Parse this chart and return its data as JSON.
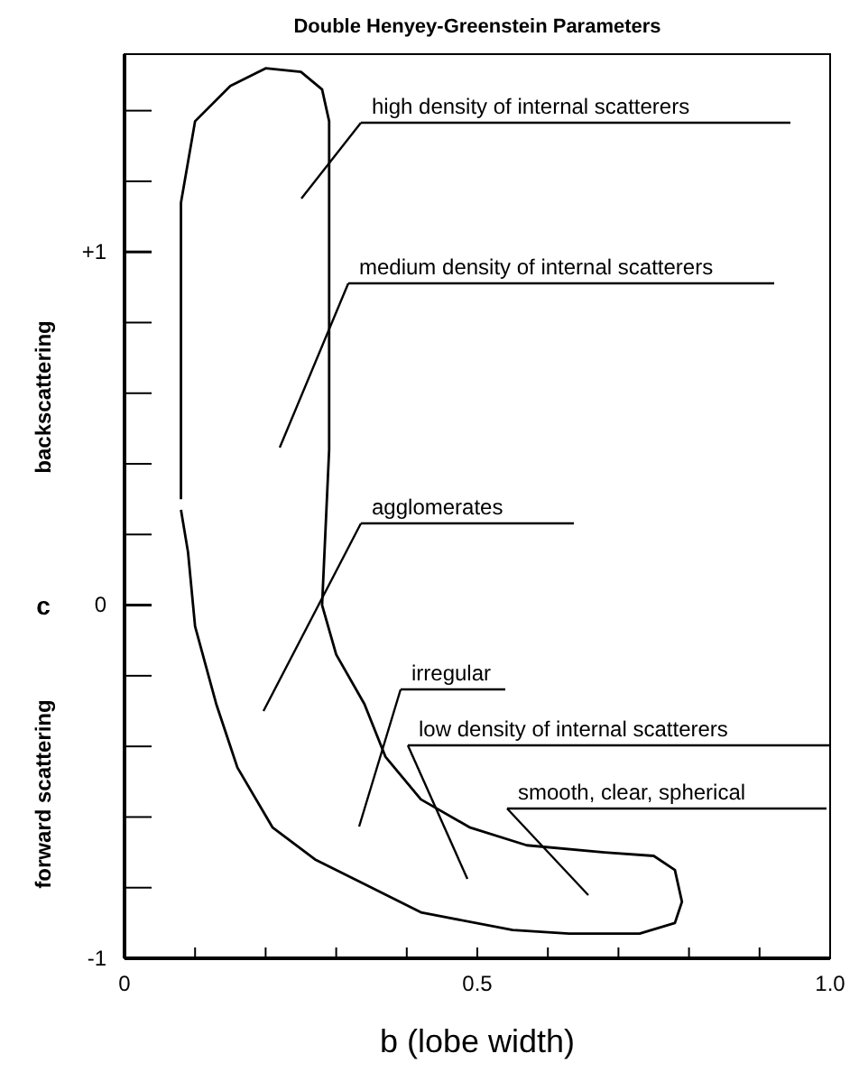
{
  "chart_data": {
    "type": "line",
    "title": "Double Henyey-Greenstein Parameters",
    "xlabel": "b (lobe width)",
    "ylabel": "c",
    "xlim": [
      0,
      1
    ],
    "ylim": [
      -1,
      1.56
    ],
    "xticks": [
      0,
      {
        "value": 0.1,
        "label": null
      },
      {
        "value": 0.2,
        "label": null
      },
      {
        "value": 0.3,
        "label": null
      },
      {
        "value": 0.4,
        "label": null
      },
      0.5,
      {
        "value": 0.6,
        "label": null
      },
      {
        "value": 0.7,
        "label": null
      },
      {
        "value": 0.8,
        "label": null
      },
      {
        "value": 0.9,
        "label": null
      },
      {
        "value": 1,
        "label": "1.0"
      }
    ],
    "yticks": [
      -1,
      {
        "value": -0.8,
        "label": null
      },
      {
        "value": -0.6,
        "label": null
      },
      {
        "value": -0.4,
        "label": null
      },
      {
        "value": -0.2,
        "label": null
      },
      0,
      {
        "value": 0.2,
        "label": null
      },
      {
        "value": 0.4,
        "label": null
      },
      {
        "value": 0.6,
        "label": null
      },
      {
        "value": 0.8,
        "label": null
      },
      {
        "value": 1,
        "label": "+1"
      },
      {
        "value": 1.2,
        "label": null
      },
      {
        "value": 1.4,
        "label": null
      }
    ],
    "series": [
      {
        "color": "#000000",
        "x": [
          0.08,
          0.08,
          0.1,
          0.15,
          0.2,
          0.25,
          0.28,
          0.29,
          0.29,
          0.29,
          0.28,
          0.3,
          0.34,
          0.37,
          0.42,
          0.49,
          0.57,
          0.68,
          0.75,
          0.78,
          0.79,
          0.78,
          0.73,
          0.63,
          0.55,
          0.42,
          0.34,
          0.27,
          0.21,
          0.16,
          0.13,
          0.1,
          0.09,
          0.08
        ],
        "values": [
          0.3,
          1.14,
          1.37,
          1.47,
          1.52,
          1.51,
          1.46,
          1.37,
          0.95,
          0.44,
          0.0,
          -0.14,
          -0.28,
          -0.43,
          -0.55,
          -0.63,
          -0.68,
          -0.7,
          -0.71,
          -0.75,
          -0.84,
          -0.9,
          -0.93,
          -0.93,
          -0.92,
          -0.87,
          -0.79,
          -0.72,
          -0.63,
          -0.46,
          -0.28,
          -0.06,
          0.15,
          0.27
        ]
      }
    ],
    "annotations": [
      "high density of internal scatterers",
      "medium density of internal scatterers",
      "agglomerates",
      "irregular",
      "low density of internal scatterers",
      "smooth, clear, spherical",
      "backscattering",
      "forward scattering"
    ]
  }
}
